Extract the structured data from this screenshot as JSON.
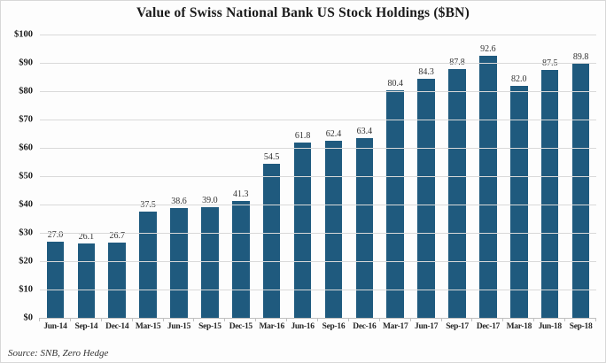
{
  "title": "Value of Swiss National Bank US Stock Holdings ($BN)",
  "source": "Source: SNB, Zero Hedge",
  "chart_data": {
    "type": "bar",
    "title": "Value of Swiss National Bank US Stock Holdings ($BN)",
    "categories": [
      "Jun-14",
      "Sep-14",
      "Dec-14",
      "Mar-15",
      "Jun-15",
      "Sep-15",
      "Dec-15",
      "Mar-16",
      "Jun-16",
      "Sep-16",
      "Dec-16",
      "Mar-17",
      "Jun-17",
      "Sep-17",
      "Dec-17",
      "Mar-18",
      "Jun-18",
      "Sep-18"
    ],
    "values": [
      27.0,
      26.1,
      26.7,
      37.5,
      38.6,
      39.0,
      41.3,
      54.5,
      61.8,
      62.4,
      63.4,
      80.4,
      84.3,
      87.8,
      92.6,
      82.0,
      87.5,
      89.8
    ],
    "value_labels": [
      "27.0",
      "26.1",
      "26.7",
      "37.5",
      "38.6",
      "39.0",
      "41.3",
      "54.5",
      "61.8",
      "62.4",
      "63.4",
      "80.4",
      "84.3",
      "87.8",
      "92.6",
      "82.0",
      "87.5",
      "89.8"
    ],
    "xlabel": "",
    "ylabel": "",
    "ylim": [
      0,
      100
    ],
    "y_ticks": [
      0,
      10,
      20,
      30,
      40,
      50,
      60,
      70,
      80,
      90,
      100
    ],
    "y_tick_labels": [
      "$0",
      "$10",
      "$20",
      "$30",
      "$40",
      "$50",
      "$60",
      "$70",
      "$80",
      "$90",
      "$100"
    ],
    "grid": true,
    "legend": false,
    "bar_color": "#1f5a7e",
    "gridline_color": "#d9d9d9",
    "axis_line_color": "#bfbfbf",
    "tick_color": "#bfbfbf"
  }
}
